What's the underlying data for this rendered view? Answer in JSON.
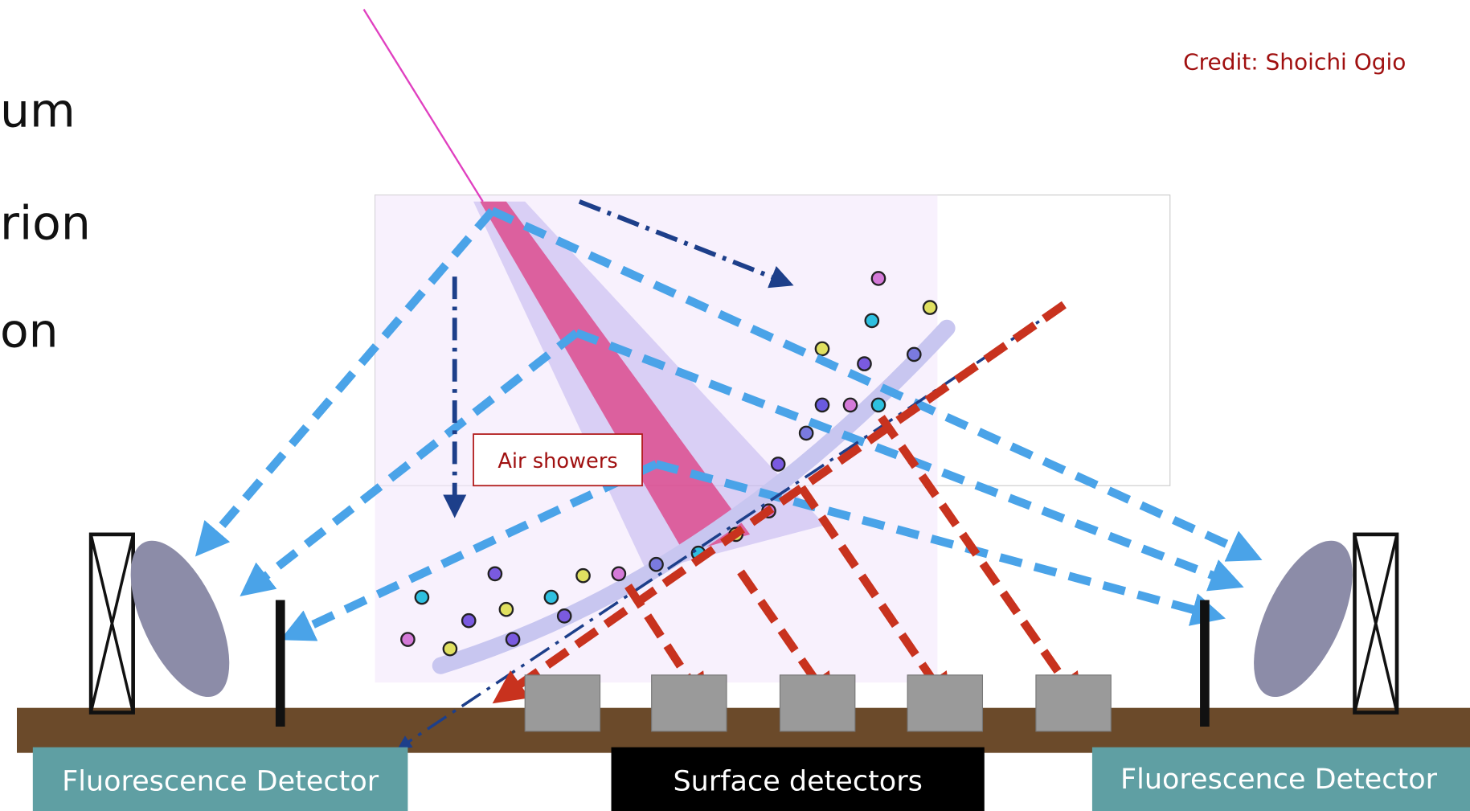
{
  "slide_text": [
    "um",
    "rion",
    "on"
  ],
  "credit": "Credit: Shoichi Ogio",
  "labels": {
    "air_showers": "Air showers",
    "fluorescence_left": "Fluorescence Detector",
    "surface": "Surface detectors",
    "fluorescence_right": "Fluorescence Detector"
  }
}
